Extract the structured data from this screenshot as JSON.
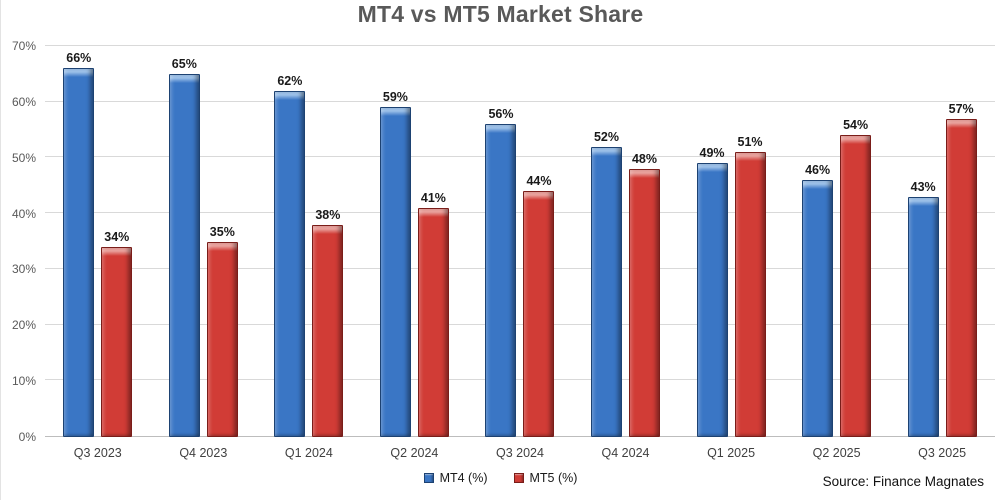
{
  "title": "MT4 vs MT5 Market Share",
  "source": "Source: Finance Magnates",
  "chart_data": {
    "type": "bar",
    "title": "MT4 vs MT5 Market Share",
    "categories": [
      "Q3 2023",
      "Q4 2023",
      "Q1 2024",
      "Q2 2024",
      "Q3 2024",
      "Q4 2024",
      "Q1 2025",
      "Q2 2025",
      "Q3 2025"
    ],
    "series": [
      {
        "key": "mt4",
        "name": "MT4 (%)",
        "values": [
          66,
          65,
          62,
          59,
          56,
          52,
          49,
          46,
          43
        ],
        "color": "#3a76c5",
        "highlight": "#9cc0e8",
        "border_color": "#1d4272"
      },
      {
        "key": "mt5",
        "name": "MT5 (%)",
        "values": [
          34,
          35,
          38,
          41,
          44,
          48,
          51,
          54,
          57
        ],
        "color": "#d13c36",
        "highlight": "#e9a19c",
        "border_color": "#7a1d19"
      }
    ],
    "data_label_format": "{v}%",
    "xlabel": "",
    "ylabel": "",
    "ylim": [
      0,
      70
    ],
    "yticks": [
      0,
      10,
      20,
      30,
      40,
      50,
      60,
      70
    ],
    "ytick_format": "{v}%",
    "grid": true,
    "gridline_color": "#d9d9d9",
    "axis_line_color": "#bdbdbd",
    "legend_position": "bottom-center",
    "source": "Source: Finance Magnates"
  }
}
